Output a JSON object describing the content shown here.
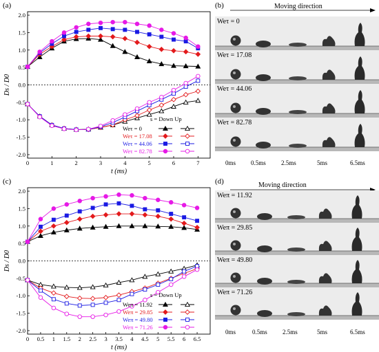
{
  "figure": {
    "panels": {
      "a": "(a)",
      "b": "(b)",
      "c": "(c)",
      "d": "(d)"
    },
    "moving_direction": "Moving direction",
    "times": [
      "0ms",
      "0.5ms",
      "2.5ms",
      "5ms",
      "6.5ms"
    ]
  },
  "photo_b": {
    "labels": [
      "Weτ = 0",
      "Weτ = 17.08",
      "Weτ = 44.06",
      "Weτ = 82.78"
    ]
  },
  "photo_d": {
    "labels": [
      "Weπ = 11.92",
      "Weπ = 29.85",
      "Weπ = 49.80",
      "Weπ = 71.26"
    ]
  },
  "chart_data": [
    {
      "id": "a",
      "type": "line",
      "xlabel": "t (ms)",
      "ylabel": "Ds / D0",
      "xlim": [
        0,
        7.5
      ],
      "ylim": [
        -2.1,
        2.1
      ],
      "xticks": [
        0,
        1,
        2,
        3,
        4,
        5,
        6,
        7
      ],
      "yticks": [
        -2.0,
        -1.5,
        -1.0,
        -0.5,
        0.0,
        0.5,
        1.0,
        1.5,
        2.0
      ],
      "legend": {
        "header": "s = Down  Up",
        "position": "bottom-right"
      },
      "x": [
        0,
        0.5,
        1,
        1.5,
        2,
        2.5,
        3,
        3.5,
        4,
        4.5,
        5,
        5.5,
        6,
        6.5,
        7
      ],
      "series": [
        {
          "name": "Weτ = 0",
          "color": "#000000",
          "down": [
            0.52,
            0.8,
            1.05,
            1.25,
            1.32,
            1.33,
            1.3,
            1.12,
            0.95,
            0.8,
            0.68,
            0.6,
            0.55,
            0.54,
            0.53
          ],
          "up": [
            -0.55,
            -0.9,
            -1.15,
            -1.25,
            -1.28,
            -1.27,
            -1.22,
            -1.15,
            -1.05,
            -0.95,
            -0.85,
            -0.75,
            -0.62,
            -0.5,
            -0.45
          ]
        },
        {
          "name": "Weτ = 17.08",
          "color": "#e31a1c",
          "down": [
            0.52,
            0.88,
            1.1,
            1.3,
            1.38,
            1.4,
            1.4,
            1.38,
            1.33,
            1.22,
            1.1,
            1.02,
            0.98,
            0.95,
            0.88
          ],
          "up": [
            -0.55,
            -0.9,
            -1.15,
            -1.25,
            -1.28,
            -1.28,
            -1.22,
            -1.15,
            -1.0,
            -0.88,
            -0.72,
            -0.58,
            -0.42,
            -0.28,
            -0.18
          ]
        },
        {
          "name": "Weτ = 44.06",
          "color": "#1a1ae3",
          "down": [
            0.52,
            0.92,
            1.18,
            1.4,
            1.52,
            1.58,
            1.63,
            1.6,
            1.58,
            1.52,
            1.45,
            1.38,
            1.3,
            1.25,
            1.05
          ],
          "up": [
            -0.55,
            -0.9,
            -1.15,
            -1.25,
            -1.28,
            -1.28,
            -1.2,
            -1.08,
            -0.92,
            -0.75,
            -0.58,
            -0.42,
            -0.25,
            -0.05,
            0.12
          ]
        },
        {
          "name": "Weτ = 82.78",
          "color": "#e619e6",
          "down": [
            0.52,
            0.95,
            1.25,
            1.5,
            1.65,
            1.75,
            1.78,
            1.8,
            1.8,
            1.75,
            1.7,
            1.58,
            1.48,
            1.35,
            1.1
          ],
          "up": [
            -0.55,
            -0.92,
            -1.17,
            -1.26,
            -1.29,
            -1.27,
            -1.18,
            -1.02,
            -0.85,
            -0.68,
            -0.5,
            -0.35,
            -0.15,
            0.05,
            0.25
          ]
        }
      ]
    },
    {
      "id": "c",
      "type": "line",
      "xlabel": "t (ms)",
      "ylabel": "Ds / D0",
      "xlim": [
        0,
        7.0
      ],
      "ylim": [
        -2.1,
        2.1
      ],
      "xticks": [
        0,
        0.5,
        1,
        1.5,
        2,
        2.5,
        3,
        3.5,
        4,
        4.5,
        5,
        5.5,
        6,
        6.5
      ],
      "yticks": [
        -2.0,
        -1.5,
        -1.0,
        -0.5,
        0.0,
        0.5,
        1.0,
        1.5,
        2.0
      ],
      "legend": {
        "header": "s = Down  Up",
        "position": "bottom-right"
      },
      "x": [
        0,
        0.5,
        1,
        1.5,
        2,
        2.5,
        3,
        3.5,
        4,
        4.5,
        5,
        5.5,
        6,
        6.5
      ],
      "series": [
        {
          "name": "Weπ = 11.92",
          "color": "#000000",
          "down": [
            0.55,
            0.72,
            0.82,
            0.88,
            0.93,
            0.96,
            0.98,
            1.0,
            1.0,
            1.0,
            0.99,
            0.98,
            0.95,
            0.9
          ],
          "up": [
            -0.55,
            -0.68,
            -0.73,
            -0.76,
            -0.77,
            -0.75,
            -0.7,
            -0.62,
            -0.55,
            -0.45,
            -0.38,
            -0.3,
            -0.22,
            -0.12
          ]
        },
        {
          "name": "Weπ = 29.85",
          "color": "#e31a1c",
          "down": [
            0.55,
            0.85,
            1.0,
            1.1,
            1.2,
            1.28,
            1.32,
            1.35,
            1.35,
            1.32,
            1.28,
            1.2,
            1.08,
            0.96
          ],
          "up": [
            -0.55,
            -0.78,
            -0.92,
            -1.02,
            -1.07,
            -1.08,
            -1.05,
            -0.98,
            -0.88,
            -0.78,
            -0.64,
            -0.5,
            -0.36,
            -0.22
          ]
        },
        {
          "name": "Weπ = 49.80",
          "color": "#1a1ae3",
          "down": [
            0.55,
            0.98,
            1.18,
            1.3,
            1.42,
            1.52,
            1.62,
            1.65,
            1.58,
            1.48,
            1.45,
            1.35,
            1.25,
            1.15
          ],
          "up": [
            -0.55,
            -0.85,
            -1.1,
            -1.22,
            -1.28,
            -1.26,
            -1.2,
            -1.12,
            -0.95,
            -0.82,
            -0.68,
            -0.52,
            -0.3,
            -0.15
          ]
        },
        {
          "name": "Weπ = 71.26",
          "color": "#e619e6",
          "down": [
            0.55,
            1.2,
            1.5,
            1.62,
            1.72,
            1.8,
            1.85,
            1.9,
            1.88,
            1.8,
            1.75,
            1.68,
            1.6,
            1.52
          ],
          "up": [
            -0.55,
            -1.05,
            -1.35,
            -1.52,
            -1.6,
            -1.6,
            -1.55,
            -1.45,
            -1.3,
            -1.12,
            -0.9,
            -0.68,
            -0.45,
            -0.25
          ]
        }
      ]
    }
  ]
}
